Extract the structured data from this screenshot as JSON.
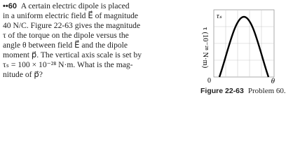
{
  "problem": {
    "number": "••60",
    "lines": [
      "A certain electric dipole is placed",
      "in a uniform electric field E⃗ of magnitude",
      "40 N/C. Figure 22-63 gives the magnitude",
      "τ of the torque on the dipole versus the",
      "angle θ between field E⃗ and the dipole",
      "moment p⃗. The vertical axis scale is set by",
      "τₛ = 100 × 10⁻²⁸ N·m. What is the mag-",
      "nitude of p⃗?"
    ]
  },
  "figure": {
    "y_axis_label": "τ (10⁻²⁸ N·m)",
    "y_top_tick": "τₛ",
    "origin_label": "0",
    "x_axis_label": "θ",
    "caption_label": "Figure 22-63",
    "caption_text": "Problem 60."
  }
}
